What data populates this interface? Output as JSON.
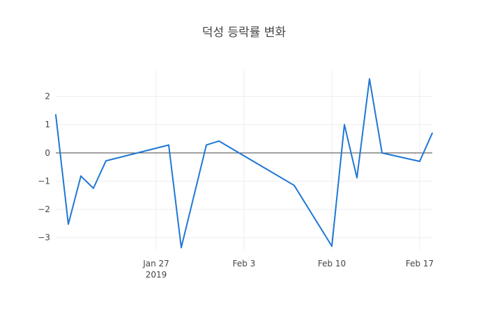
{
  "chart_data": {
    "type": "line",
    "title": "덕성 등락률 변화",
    "xlabel": "",
    "ylabel": "",
    "x": [
      "2019-01-19",
      "2019-01-20",
      "2019-01-21",
      "2019-01-22",
      "2019-01-23",
      "2019-01-28",
      "2019-01-29",
      "2019-01-31",
      "2019-02-01",
      "2019-02-07",
      "2019-02-10",
      "2019-02-11",
      "2019-02-12",
      "2019-02-13",
      "2019-02-14",
      "2019-02-17",
      "2019-02-18"
    ],
    "series": [
      {
        "values": [
          1.35,
          -2.52,
          -0.82,
          -1.25,
          -0.28,
          0.28,
          -3.35,
          0.28,
          0.42,
          -1.15,
          -3.3,
          1.0,
          -0.88,
          2.62,
          0.0,
          -0.3,
          0.7
        ],
        "color": "#1f77d4"
      }
    ],
    "ylim": [
      -3.45,
      2.95
    ],
    "xlim": [
      "2019-01-19",
      "2019-02-18"
    ],
    "x_ticks": [
      {
        "date": "2019-01-27",
        "label": "Jan 27",
        "sublabel": "2019"
      },
      {
        "date": "2019-02-03",
        "label": "Feb 3",
        "sublabel": ""
      },
      {
        "date": "2019-02-10",
        "label": "Feb 10",
        "sublabel": ""
      },
      {
        "date": "2019-02-17",
        "label": "Feb 17",
        "sublabel": ""
      }
    ],
    "y_ticks": [
      {
        "value": 2,
        "label": "2"
      },
      {
        "value": 1,
        "label": "1"
      },
      {
        "value": 0,
        "label": "0"
      },
      {
        "value": -1,
        "label": "−1"
      },
      {
        "value": -2,
        "label": "−2"
      },
      {
        "value": -3,
        "label": "−3"
      }
    ],
    "grid": true,
    "zero_line": true
  }
}
